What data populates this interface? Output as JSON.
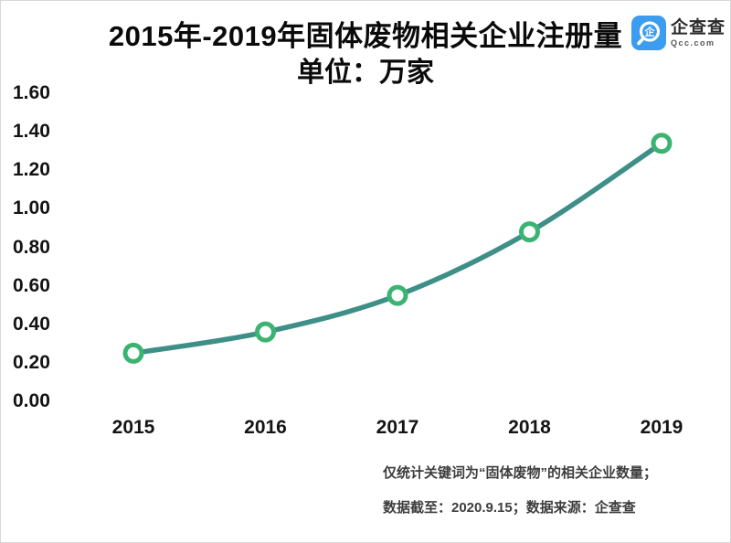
{
  "header": {
    "title": "2015年-2019年固体废物相关企业注册量",
    "subtitle": "单位：万家"
  },
  "logo": {
    "name": "企查查",
    "domain": "Qcc.com",
    "glyph": "企",
    "brand_color": "#3C9CF0"
  },
  "chart_data": {
    "type": "line",
    "title": "2015年-2019年固体废物相关企业注册量",
    "unit": "万家",
    "categories": [
      "2015",
      "2016",
      "2017",
      "2018",
      "2019"
    ],
    "values": [
      0.25,
      0.36,
      0.55,
      0.88,
      1.34
    ],
    "series_name": "固体废物相关企业注册量",
    "ylim": [
      0,
      1.6
    ],
    "y_ticks": [
      "0.00",
      "0.20",
      "0.40",
      "0.60",
      "0.80",
      "1.00",
      "1.20",
      "1.40",
      "1.60"
    ],
    "grid": false,
    "legend": false,
    "line_color": "#3E8F88",
    "marker_stroke": "#3BB371",
    "marker_fill": "#FFFFFF"
  },
  "footer": {
    "line1": "仅统计关键词为“固体废物”的相关企业数量；",
    "line2": "数据截至：2020.9.15；数据来源：企查查"
  }
}
